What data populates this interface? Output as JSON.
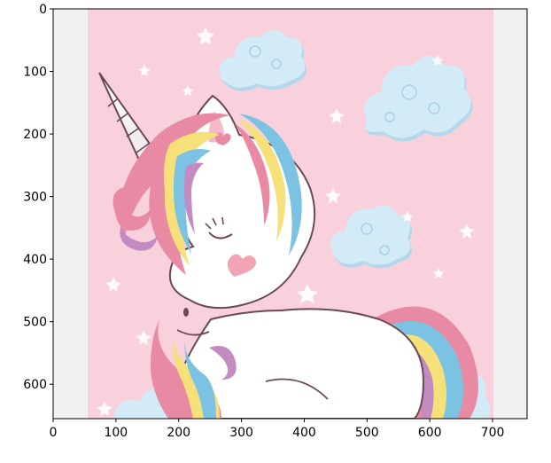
{
  "figure": {
    "x_ticks": [
      "0",
      "100",
      "200",
      "300",
      "400",
      "500",
      "600",
      "700"
    ],
    "y_ticks": [
      "0",
      "100",
      "200",
      "300",
      "400",
      "500",
      "600"
    ],
    "xlim": [
      0,
      755
    ],
    "ylim": [
      655,
      0
    ]
  },
  "image": {
    "subject": "cartoon unicorn with rainbow mane on pink background with clouds and stars",
    "pad_color": "#eff1f3",
    "background_color": "#f8d1dc",
    "cloud_color": "#cfe8f5",
    "body_color": "#ffffff",
    "mane_colors": [
      "#e98aa4",
      "#f6e07a",
      "#7cc3e3",
      "#c48bc3",
      "#f3b7c6"
    ]
  }
}
